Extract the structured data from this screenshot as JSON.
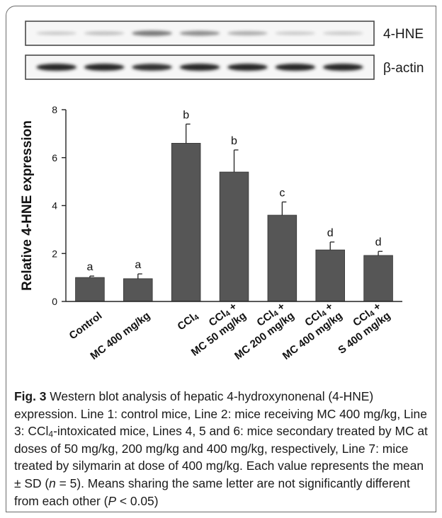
{
  "blot": {
    "rows": [
      {
        "label": "4-HNE",
        "band_intensity": [
          0.15,
          0.2,
          0.55,
          0.45,
          0.3,
          0.15,
          0.15
        ]
      },
      {
        "label": "β-actin",
        "band_intensity": [
          0.95,
          0.95,
          0.9,
          0.95,
          0.95,
          0.95,
          0.95
        ]
      }
    ]
  },
  "chart_data": {
    "type": "bar",
    "ylabel": "Relative 4-HNE expression",
    "ylim": [
      0,
      8
    ],
    "yticks": [
      "0",
      "2",
      "4",
      "6",
      "8"
    ],
    "bar_color": "#565656",
    "categories": [
      {
        "lines": [
          "Control"
        ]
      },
      {
        "lines": [
          "MC 400 mg/kg"
        ]
      },
      {
        "lines": [
          "CCl4"
        ]
      },
      {
        "lines": [
          "CCl4 +",
          "MC 50 mg/kg"
        ]
      },
      {
        "lines": [
          "CCl4 +",
          "MC 200 mg/kg"
        ]
      },
      {
        "lines": [
          "CCl4 +",
          "MC 400 mg/kg"
        ]
      },
      {
        "lines": [
          "CCl4 +",
          "S 400 mg/kg"
        ]
      }
    ],
    "values": [
      1.0,
      0.95,
      6.6,
      5.4,
      3.6,
      2.15,
      1.92
    ],
    "errors": [
      0.06,
      0.2,
      0.8,
      0.92,
      0.55,
      0.33,
      0.17
    ],
    "letters": [
      "a",
      "a",
      "b",
      "b",
      "c",
      "d",
      "d"
    ]
  },
  "caption": {
    "label": "Fig. 3",
    "text": "Western blot analysis of hepatic 4-hydroxynonenal (4-HNE) expression. Line 1: control mice, Line 2: mice receiving MC 400 mg/kg, Line 3: CCl4-intoxicated mice, Lines 4, 5 and 6: mice secondary treated by MC at doses of 50 mg/kg, 200 mg/kg and 400 mg/kg, respectively, Line 7: mice treated by silymarin at dose of 400 mg/kg. Each value represents the mean ± SD (n = 5). Means sharing the same letter are not significantly different from each other (P < 0.05)"
  }
}
